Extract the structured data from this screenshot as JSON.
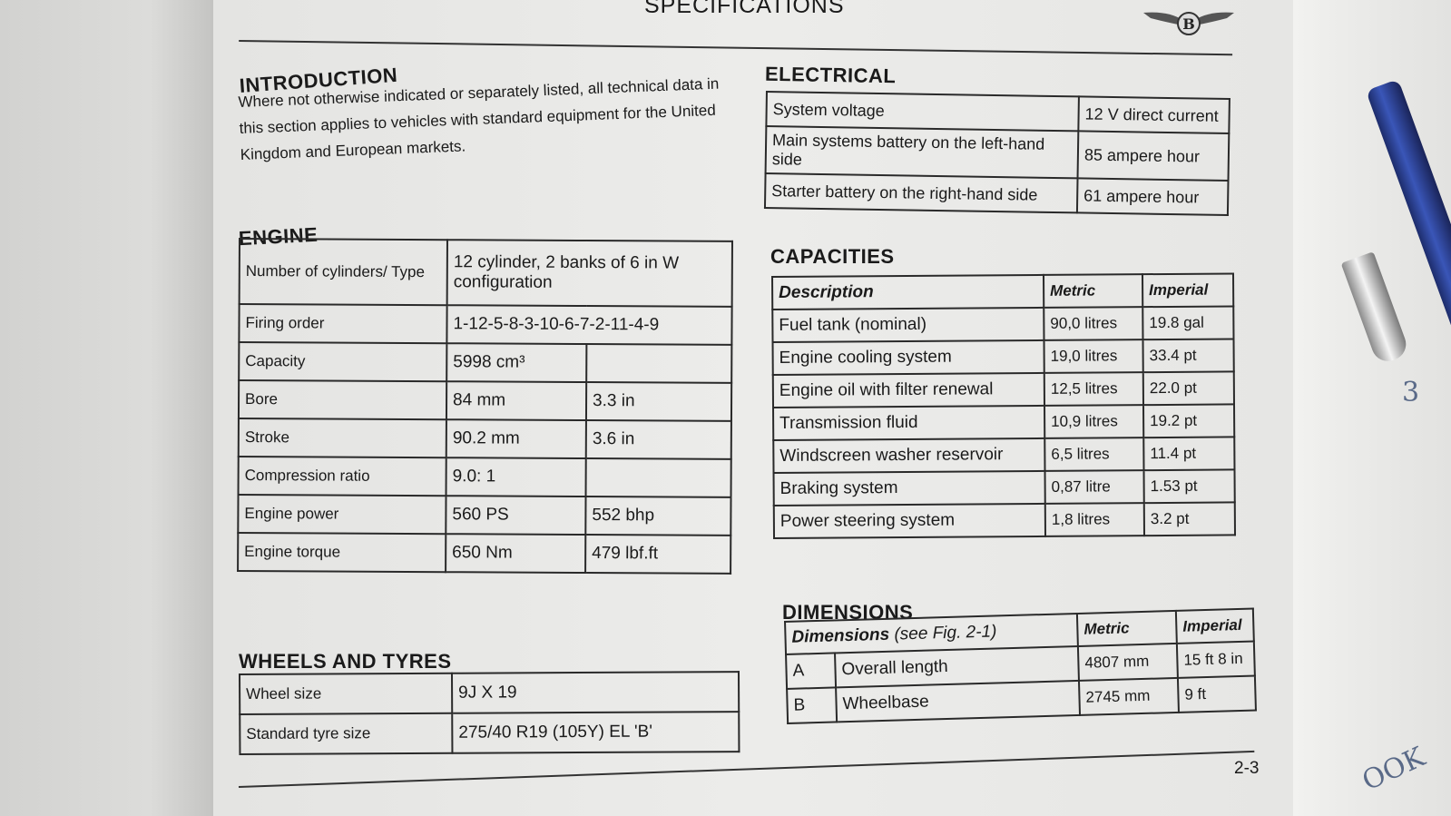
{
  "page": {
    "title": "SPECIFICATIONS",
    "page_number": "2-3",
    "logo": "Bentley winged B"
  },
  "introduction": {
    "heading": "INTRODUCTION",
    "text": "Where not otherwise indicated or separately listed, all technical data in this section applies to vehicles with standard equipment for the United Kingdom and European markets."
  },
  "engine": {
    "heading": "ENGINE",
    "rows": [
      {
        "label": "Number of cylinders/ Type",
        "metric": "12 cylinder, 2 banks of 6 in W configuration",
        "imperial": ""
      },
      {
        "label": "Firing order",
        "metric": "1-12-5-8-3-10-6-7-2-11-4-9",
        "imperial": ""
      },
      {
        "label": "Capacity",
        "metric": "5998 cm³",
        "imperial": ""
      },
      {
        "label": "Bore",
        "metric": "84 mm",
        "imperial": "3.3 in"
      },
      {
        "label": "Stroke",
        "metric": "90.2 mm",
        "imperial": "3.6 in"
      },
      {
        "label": "Compression ratio",
        "metric": "9.0: 1",
        "imperial": ""
      },
      {
        "label": "Engine power",
        "metric": "560 PS",
        "imperial": "552 bhp"
      },
      {
        "label": "Engine torque",
        "metric": "650 Nm",
        "imperial": "479 lbf.ft"
      }
    ]
  },
  "wheels": {
    "heading": "WHEELS AND TYRES",
    "rows": [
      {
        "label": "Wheel size",
        "value": "9J X 19"
      },
      {
        "label": "Standard tyre size",
        "value": "275/40 R19 (105Y) EL 'B'"
      }
    ]
  },
  "electrical": {
    "heading": "ELECTRICAL",
    "rows": [
      {
        "label": "System voltage",
        "value": "12 V direct current"
      },
      {
        "label": "Main systems battery on the left-hand side",
        "value": "85 ampere hour"
      },
      {
        "label": "Starter battery on the right-hand side",
        "value": "61 ampere hour"
      }
    ]
  },
  "capacities": {
    "heading": "CAPACITIES",
    "columns": [
      "Description",
      "Metric",
      "Imperial"
    ],
    "rows": [
      {
        "label": "Fuel tank (nominal)",
        "metric": "90,0 litres",
        "imperial": "19.8 gal"
      },
      {
        "label": "Engine cooling system",
        "metric": "19,0 litres",
        "imperial": "33.4 pt"
      },
      {
        "label": "Engine oil with filter renewal",
        "metric": "12,5 litres",
        "imperial": "22.0 pt"
      },
      {
        "label": "Transmission fluid",
        "metric": "10,9 litres",
        "imperial": "19.2 pt"
      },
      {
        "label": "Windscreen washer reservoir",
        "metric": "6,5 litres",
        "imperial": "11.4 pt"
      },
      {
        "label": "Braking system",
        "metric": "0,87 litre",
        "imperial": "1.53 pt"
      },
      {
        "label": "Power steering system",
        "metric": "1,8 litres",
        "imperial": "3.2 pt"
      }
    ]
  },
  "dimensions": {
    "heading": "DIMENSIONS",
    "header_label": "Dimensions",
    "header_note": "(see Fig. 2-1)",
    "columns": [
      "Metric",
      "Imperial"
    ],
    "rows": [
      {
        "key": "A",
        "label": "Overall length",
        "metric": "4807 mm",
        "imperial": "15 ft 8 in"
      },
      {
        "key": "B",
        "label": "Wheelbase",
        "metric": "2745 mm",
        "imperial": "9 ft"
      }
    ]
  },
  "handwriting": [
    "3",
    "OOK"
  ]
}
